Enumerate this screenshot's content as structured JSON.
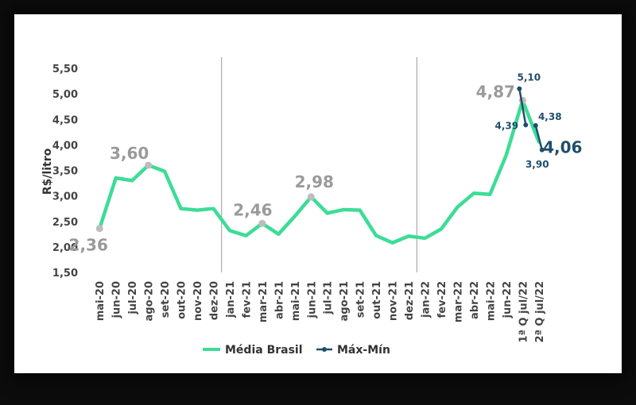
{
  "chart_data": {
    "type": "line",
    "ylabel": "R$/litro",
    "ylim": [
      1.5,
      5.5
    ],
    "yticks": [
      "5,50",
      "5,00",
      "4,50",
      "4,00",
      "3,50",
      "3,00",
      "2,50",
      "2,00",
      "1,50"
    ],
    "categories": [
      "mai-20",
      "jun-20",
      "jul-20",
      "ago-20",
      "set-20",
      "out-20",
      "nov-20",
      "dez-20",
      "jan-21",
      "fev-21",
      "mar-21",
      "abr-21",
      "mai-21",
      "jun-21",
      "jul-21",
      "ago-21",
      "set-21",
      "out-21",
      "nov-21",
      "dez-21",
      "jan-22",
      "fev-22",
      "mar-22",
      "abr-22",
      "mai-22",
      "jun-22",
      "1ª Q jul/22",
      "2ª Q jul/22"
    ],
    "series": [
      {
        "name": "Média Brasil",
        "color": "#3ddc97",
        "values": [
          2.36,
          3.35,
          3.3,
          3.6,
          3.48,
          2.75,
          2.72,
          2.75,
          2.32,
          2.22,
          2.46,
          2.25,
          2.6,
          2.98,
          2.66,
          2.73,
          2.72,
          2.22,
          2.08,
          2.21,
          2.17,
          2.35,
          2.78,
          3.05,
          3.03,
          3.8,
          4.87,
          4.06
        ]
      },
      {
        "name": "Máx-Mín",
        "color": "#1f4e6b",
        "segments": [
          {
            "category": "1ª Q jul/22",
            "values": [
              5.1,
              4.39
            ]
          },
          {
            "category": "2ª Q jul/22",
            "values": [
              4.38,
              3.9
            ]
          }
        ]
      }
    ],
    "annotations": [
      {
        "category": "mai-20",
        "text": "2,36"
      },
      {
        "category": "ago-20",
        "text": "3,60"
      },
      {
        "category": "mar-21",
        "text": "2,46"
      },
      {
        "category": "jun-21",
        "text": "2,98"
      },
      {
        "category": "1ª Q jul/22",
        "text": "4,87"
      },
      {
        "category": "1ª Q jul/22",
        "text": "5,10"
      },
      {
        "category": "1ª Q jul/22",
        "text": "4,39"
      },
      {
        "category": "2ª Q jul/22",
        "text": "4,38"
      },
      {
        "category": "2ª Q jul/22",
        "text": "3,90"
      },
      {
        "category": "2ª Q jul/22",
        "text": "4,06"
      }
    ],
    "legend": [
      "Média Brasil",
      "Máx-Mín"
    ],
    "legend_position": "bottom"
  }
}
